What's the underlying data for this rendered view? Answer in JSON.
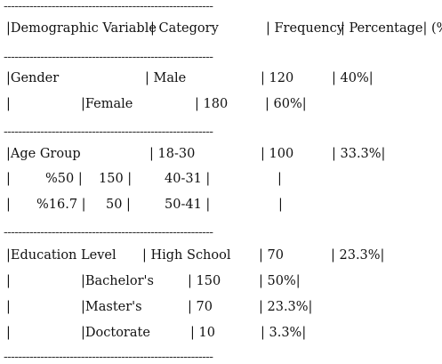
{
  "header": {
    "col1": "|Demographic Variable",
    "col2": "| Category",
    "col3": "| Frequency",
    "col4": "| Percentage| (%)"
  },
  "rules": {
    "dash": "---------------------------------------------------------"
  },
  "gender": {
    "r1": {
      "a": "|Gender",
      "b": "| Male",
      "c": "| 120",
      "d": "| 40%|"
    },
    "r2": {
      "a": "|",
      "b": "|Female",
      "c": "| 180",
      "d": "| 60%|"
    }
  },
  "age": {
    "r1": {
      "a": "|Age Group",
      "b": "| 18-30",
      "c": "| 100",
      "d": "| 33.3%|"
    },
    "r2": {
      "a": "|",
      "b": "%50 |",
      "c": "150 |",
      "d": "40-31 |",
      "e": "|"
    },
    "r3": {
      "a": "|",
      "b": "%16.7 |",
      "c": "50 |",
      "d": "50-41 |",
      "e": "|"
    }
  },
  "education": {
    "r1": {
      "a": "|Education Level",
      "b": "| High School",
      "c": "| 70",
      "d": "| 23.3%|"
    },
    "r2": {
      "a": "|",
      "b": "|Bachelor's",
      "c": "| 150",
      "d": "| 50%|"
    },
    "r3": {
      "a": "|",
      "b": "|Master's",
      "c": "| 70",
      "d": "| 23.3%|"
    },
    "r4": {
      "a": "|",
      "b": "|Doctorate",
      "c": "| 10",
      "d": "| 3.3%|"
    }
  }
}
